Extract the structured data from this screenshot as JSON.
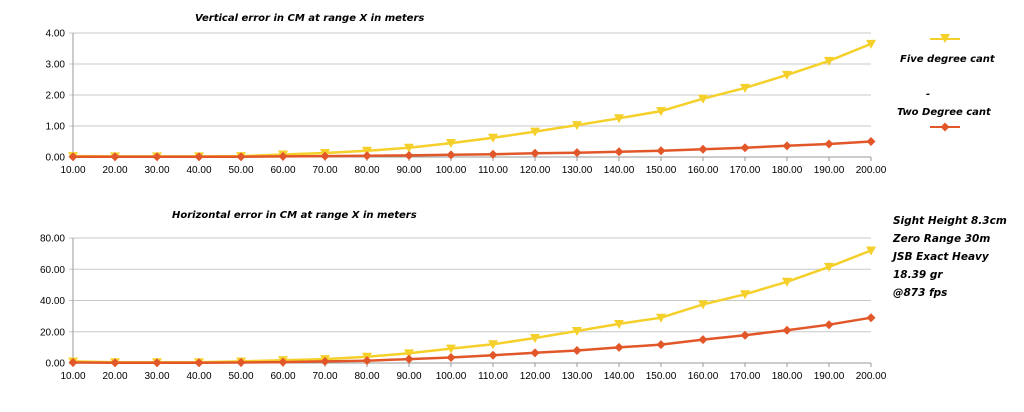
{
  "chart_data": [
    {
      "type": "line",
      "title": "Vertical error in CM at range X in meters",
      "xlabel": "",
      "ylabel": "",
      "categories": [
        "10.00",
        "20.00",
        "30.00",
        "40.00",
        "50.00",
        "60.00",
        "70.00",
        "80.00",
        "90.00",
        "100.00",
        "110.00",
        "120.00",
        "130.00",
        "140.00",
        "150.00",
        "160.00",
        "170.00",
        "180.00",
        "190.00",
        "200.00"
      ],
      "yticks": [
        "0.00",
        "1.00",
        "2.00",
        "3.00",
        "4.00"
      ],
      "ylim": [
        0,
        4
      ],
      "grid": true,
      "legend_position": "right",
      "series": [
        {
          "name": "Five degree cant",
          "color": "#f5d02a",
          "marker": "triangle-down",
          "values": [
            0.03,
            0.02,
            0.02,
            0.02,
            0.03,
            0.08,
            0.13,
            0.2,
            0.3,
            0.45,
            0.62,
            0.82,
            1.03,
            1.25,
            1.48,
            1.88,
            2.23,
            2.65,
            3.1,
            3.65
          ]
        },
        {
          "name": "Two Degree cant",
          "color": "#e2572a",
          "marker": "diamond",
          "values": [
            0.01,
            0.01,
            0.01,
            0.01,
            0.01,
            0.02,
            0.03,
            0.04,
            0.05,
            0.07,
            0.09,
            0.12,
            0.14,
            0.17,
            0.2,
            0.25,
            0.3,
            0.36,
            0.42,
            0.5
          ]
        }
      ]
    },
    {
      "type": "line",
      "title": "Horizontal error in CM at range X in meters",
      "xlabel": "",
      "ylabel": "",
      "categories": [
        "10.00",
        "20.00",
        "30.00",
        "40.00",
        "50.00",
        "60.00",
        "70.00",
        "80.00",
        "90.00",
        "100.00",
        "110.00",
        "120.00",
        "130.00",
        "140.00",
        "150.00",
        "160.00",
        "170.00",
        "180.00",
        "190.00",
        "200.00"
      ],
      "yticks": [
        "0.00",
        "20.00",
        "40.00",
        "60.00",
        "80.00"
      ],
      "ylim": [
        0,
        80
      ],
      "grid": true,
      "series": [
        {
          "name": "Five degree cant",
          "color": "#f5d02a",
          "marker": "triangle-down",
          "values": [
            1.0,
            0.5,
            0.5,
            0.5,
            1.0,
            1.8,
            2.5,
            4.0,
            6.2,
            9.2,
            12.0,
            16.0,
            20.5,
            25.0,
            29.0,
            37.5,
            44.0,
            52.0,
            61.5,
            72.0
          ]
        },
        {
          "name": "Two Degree cant",
          "color": "#e2572a",
          "marker": "diamond",
          "values": [
            0.3,
            0.2,
            0.2,
            0.2,
            0.3,
            0.6,
            1.0,
            1.5,
            2.5,
            3.5,
            5.0,
            6.5,
            8.0,
            10.0,
            11.8,
            15.0,
            17.8,
            21.0,
            24.5,
            29.0
          ]
        }
      ]
    }
  ],
  "legend": {
    "five_label": "Five degree cant",
    "two_label": "Two Degree cant",
    "stray_mark": "-"
  },
  "notes": [
    "Sight Height 8.3cm",
    "Zero Range 30m",
    "JSB Exact Heavy",
    "18.39 gr",
    "@873 fps"
  ]
}
